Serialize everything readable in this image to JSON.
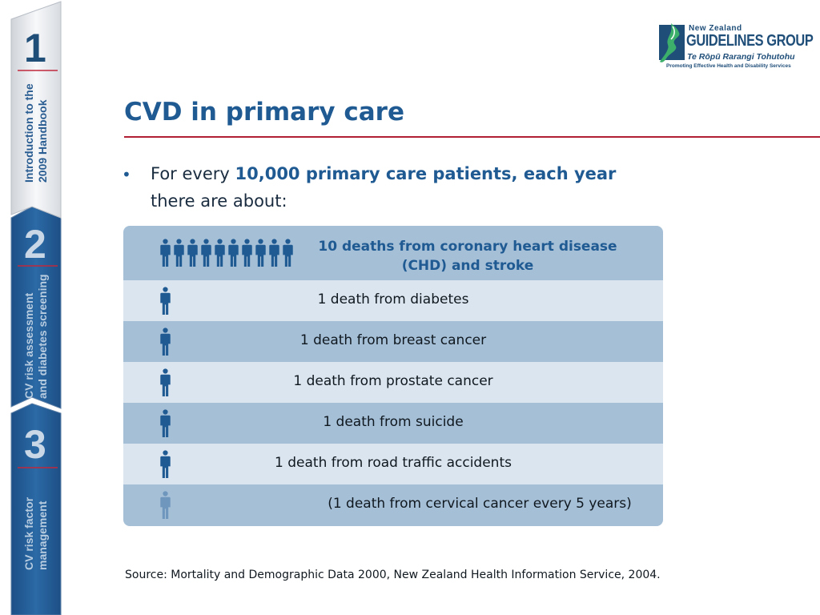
{
  "sidebar": {
    "sections": [
      {
        "number": "1",
        "label_line1": "Introduction to the",
        "label_line2": "2009 Handbook"
      },
      {
        "number": "2",
        "label_line1": "CV risk assessment",
        "label_line2": "and diabetes screening"
      },
      {
        "number": "3",
        "label_line1": "CV risk factor",
        "label_line2": "management"
      }
    ],
    "active_section": "1"
  },
  "logo": {
    "line1": "New Zealand",
    "line2": "GUIDELINES GROUP",
    "line3": "Te Rōpū Rarangi Tohutohu",
    "tagline": "Promoting Effective Health and Disability Services"
  },
  "slide": {
    "title": "CVD in primary care",
    "bullet": {
      "marker": "•",
      "prefix": "For every ",
      "highlight": "10,000 primary care patients, each year",
      "line2": "there are about:"
    }
  },
  "table": {
    "header": {
      "line1": "10 deaths from coronary heart disease",
      "line2": "(CHD) and stroke",
      "icon_count": 10
    },
    "rows": [
      {
        "text": "1 death from diabetes",
        "icon_count": 1
      },
      {
        "text": "1 death from breast cancer",
        "icon_count": 1
      },
      {
        "text": "1 death from prostate cancer",
        "icon_count": 1
      },
      {
        "text": "1 death from suicide",
        "icon_count": 1
      },
      {
        "text": "1 death from road traffic accidents",
        "icon_count": 1
      },
      {
        "text": "(1 death from cervical cancer every 5 years)",
        "icon_count": 1,
        "faded": true
      }
    ]
  },
  "source": "Source: Mortality and Demographic Data 2000, New Zealand Health Information Service, 2004.",
  "colors": {
    "title_blue": "#1f5a92",
    "accent_red": "#b11f35",
    "row_dark": "#a5bfd7",
    "row_light": "#dbe5ef",
    "icon_blue": "#1f5a92",
    "icon_faded": "#6f96bd"
  }
}
